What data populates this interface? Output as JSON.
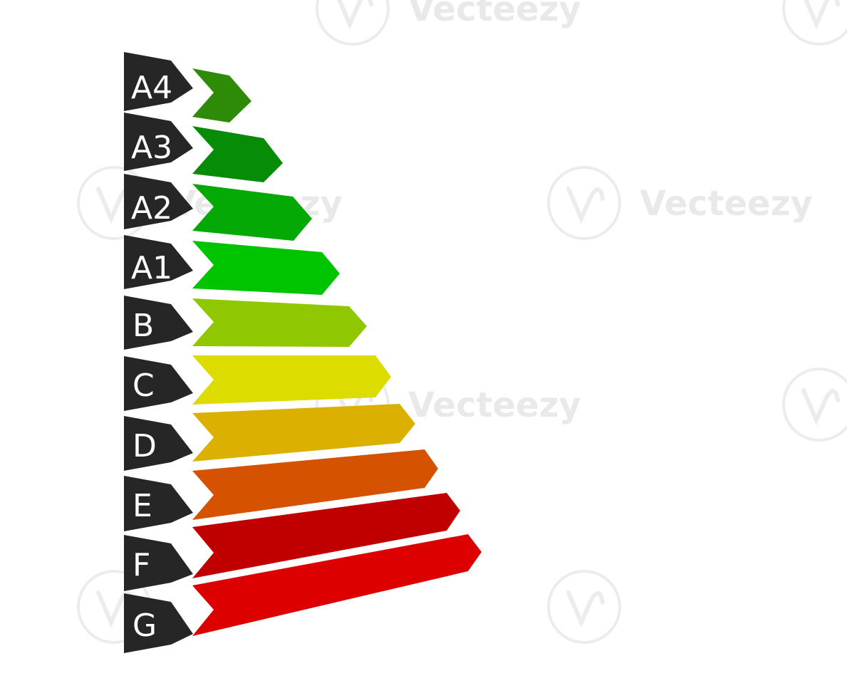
{
  "energy_classes": [
    {
      "label": "A4",
      "color": "#2e8b07"
    },
    {
      "label": "A3",
      "color": "#078c07"
    },
    {
      "label": "A2",
      "color": "#05a905"
    },
    {
      "label": "A1",
      "color": "#00c400"
    },
    {
      "label": "B",
      "color": "#8fc800"
    },
    {
      "label": "C",
      "color": "#dcdc00"
    },
    {
      "label": "D",
      "color": "#dcb000"
    },
    {
      "label": "E",
      "color": "#d45200"
    },
    {
      "label": "F",
      "color": "#c00000"
    },
    {
      "label": "G",
      "color": "#dd0000"
    }
  ],
  "label_background": "#262626",
  "watermark": {
    "text": "Vecteezy"
  }
}
